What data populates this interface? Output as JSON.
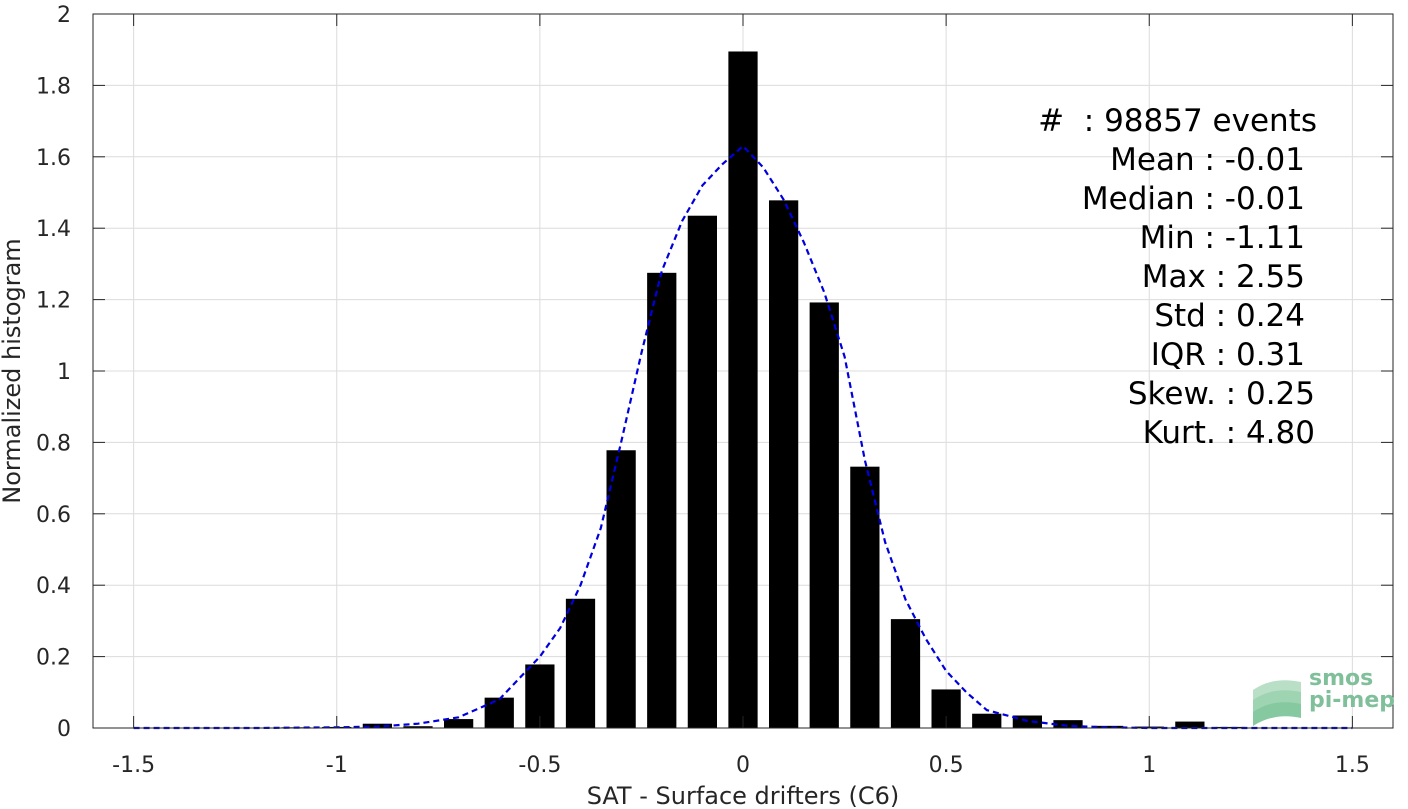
{
  "chart_data": {
    "type": "bar",
    "xlabel": "SAT - Surface drifters (C6)",
    "ylabel": "Normalized histogram",
    "xlim": [
      -1.6,
      1.6
    ],
    "ylim": [
      0,
      2
    ],
    "grid": true,
    "x_ticks": [
      "-1.5",
      "-1",
      "-0.5",
      "0",
      "0.5",
      "1",
      "1.5"
    ],
    "x_tick_values": [
      -1.5,
      -1,
      -0.5,
      0,
      0.5,
      1,
      1.5
    ],
    "y_ticks": [
      "0",
      "0.2",
      "0.4",
      "0.6",
      "0.8",
      "1",
      "1.2",
      "1.4",
      "1.6",
      "1.8",
      "2"
    ],
    "y_tick_values": [
      0,
      0.2,
      0.4,
      0.6,
      0.8,
      1,
      1.2,
      1.4,
      1.6,
      1.8,
      2
    ],
    "bar_width": 0.072,
    "bars": {
      "x": [
        -1.1,
        -1.0,
        -0.9,
        -0.8,
        -0.7,
        -0.6,
        -0.5,
        -0.4,
        -0.3,
        -0.2,
        -0.1,
        0.0,
        0.1,
        0.2,
        0.3,
        0.4,
        0.5,
        0.6,
        0.7,
        0.8,
        0.9,
        1.0,
        1.1,
        1.2
      ],
      "values": [
        0.002,
        0.003,
        0.012,
        0.005,
        0.025,
        0.085,
        0.178,
        0.362,
        0.778,
        1.275,
        1.435,
        1.895,
        1.478,
        1.192,
        0.732,
        0.305,
        0.108,
        0.04,
        0.035,
        0.022,
        0.006,
        0.004,
        0.018,
        0.003
      ]
    },
    "fit_line": {
      "style": "dashed",
      "color": "#0000dd",
      "x": [
        -1.5,
        -1.2,
        -1.0,
        -0.9,
        -0.8,
        -0.7,
        -0.6,
        -0.5,
        -0.45,
        -0.4,
        -0.35,
        -0.3,
        -0.25,
        -0.2,
        -0.15,
        -0.1,
        -0.05,
        0.0,
        0.05,
        0.1,
        0.15,
        0.2,
        0.25,
        0.3,
        0.35,
        0.4,
        0.45,
        0.5,
        0.55,
        0.6,
        0.7,
        0.8,
        0.9,
        1.0,
        1.5
      ],
      "y": [
        0.0,
        0.0,
        0.002,
        0.004,
        0.012,
        0.03,
        0.08,
        0.2,
        0.28,
        0.4,
        0.56,
        0.8,
        1.05,
        1.28,
        1.42,
        1.52,
        1.58,
        1.63,
        1.57,
        1.48,
        1.36,
        1.22,
        1.04,
        0.75,
        0.52,
        0.36,
        0.25,
        0.16,
        0.1,
        0.05,
        0.02,
        0.006,
        0.002,
        0.0,
        0.0
      ]
    }
  },
  "stats": [
    {
      "label": "#  : 98857 events",
      "right": 1317
    },
    {
      "label": "Mean : -0.01",
      "right": 1305
    },
    {
      "label": "Median : -0.01",
      "right": 1305
    },
    {
      "label": "Min : -1.11",
      "right": 1305
    },
    {
      "label": "Max : 2.55",
      "right": 1305
    },
    {
      "label": "Std : 0.24",
      "right": 1305
    },
    {
      "label": "IQR : 0.31",
      "right": 1305
    },
    {
      "label": "Skew. : 0.25",
      "right": 1315
    },
    {
      "label": "Kurt. : 4.80",
      "right": 1315
    }
  ],
  "watermark": {
    "line1": "smos",
    "line2": "pi-mep",
    "color": "#7fbf9a"
  }
}
